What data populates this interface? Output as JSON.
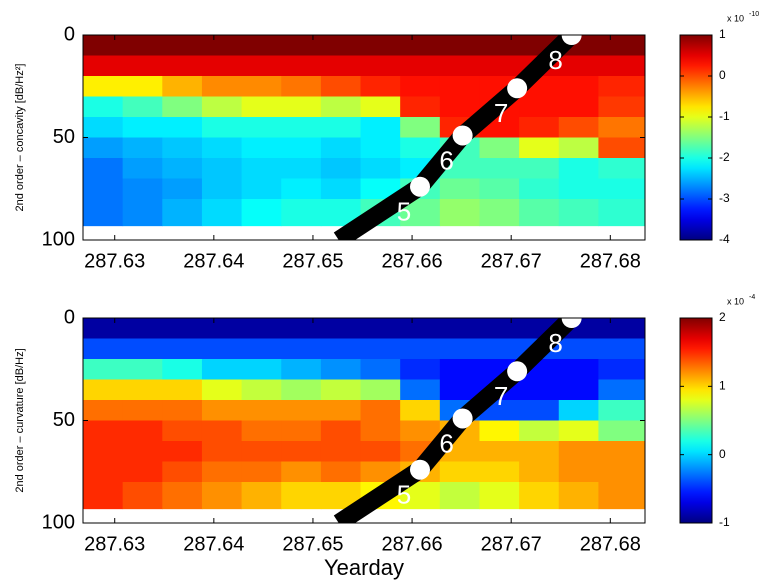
{
  "chart_data": [
    {
      "type": "heatmap",
      "colormap": "jet",
      "ylabel": "2nd order – concavity [dB/Hz²]",
      "xlim": [
        287.6268,
        287.6835
      ],
      "xticks": [
        287.63,
        287.64,
        287.65,
        287.66,
        287.67,
        287.68
      ],
      "ylim": [
        0,
        100
      ],
      "yticks": [
        0,
        50,
        100
      ],
      "y_reversed": true,
      "x_edges": [
        287.6268,
        287.6308,
        287.6348,
        287.6388,
        287.6428,
        287.6468,
        287.6508,
        287.6548,
        287.6588,
        287.6628,
        287.6668,
        287.6708,
        287.6748,
        287.6788,
        287.6835
      ],
      "y_edges": [
        0,
        10,
        20,
        30,
        40,
        50,
        60,
        70,
        80,
        93
      ],
      "values": [
        [
          1,
          1,
          1,
          1,
          1,
          1,
          1,
          1,
          1,
          1,
          1,
          1,
          1,
          1
        ],
        [
          0.5,
          0.5,
          0.5,
          0.5,
          0.5,
          0.5,
          0.5,
          0.5,
          0.5,
          0.5,
          0.5,
          0.5,
          0.5,
          0.5
        ],
        [
          -0.8,
          -0.8,
          -0.5,
          -0.3,
          -0.3,
          -0.2,
          0,
          0.2,
          0.3,
          0.3,
          0.3,
          0.3,
          0.3,
          0.2
        ],
        [
          -2,
          -1.8,
          -1.5,
          -1.2,
          -1,
          -1,
          -1.2,
          -1,
          0.2,
          0.3,
          0.3,
          0.3,
          0.3,
          0.1
        ],
        [
          -2.3,
          -2.2,
          -2.2,
          -2,
          -2,
          -2,
          -2,
          -2.2,
          -1.5,
          0.2,
          0.3,
          0.2,
          0,
          -0.2
        ],
        [
          -2.6,
          -2.5,
          -2.4,
          -2.3,
          -2.2,
          -2.2,
          -2.3,
          -2.2,
          -2,
          -1.8,
          -1.5,
          -1,
          -1.2,
          0
        ],
        [
          -2.8,
          -2.6,
          -2.5,
          -2.4,
          -2.3,
          -2.3,
          -2.4,
          -2.3,
          -2.2,
          -1.8,
          -1.8,
          -1.8,
          -2,
          -1.9
        ],
        [
          -2.8,
          -2.7,
          -2.6,
          -2.4,
          -2.3,
          -2.2,
          -2.3,
          -2.1,
          -1.8,
          -1.6,
          -1.7,
          -1.9,
          -2,
          -2
        ],
        [
          -2.8,
          -2.7,
          -2.5,
          -2.3,
          -2.1,
          -2,
          -2,
          -1.8,
          -1.6,
          -1.4,
          -1.5,
          -1.7,
          -1.8,
          -1.9
        ]
      ],
      "clim": [
        -4,
        1
      ],
      "cticks": [
        1,
        0,
        -1,
        -2,
        -3,
        -4
      ],
      "colorbar_multiplier": {
        "base": "x 10",
        "exponent": "-10"
      },
      "track": {
        "x": [
          287.6526,
          287.6608,
          287.6651,
          287.6706,
          287.6761
        ],
        "y": [
          100,
          74,
          49,
          26,
          0
        ]
      },
      "markers": {
        "x": [
          287.6608,
          287.6651,
          287.6706,
          287.6761
        ],
        "y": [
          74,
          49,
          26,
          0
        ],
        "labels": [
          "5",
          "6",
          "7",
          "8"
        ]
      }
    },
    {
      "type": "heatmap",
      "colormap": "jet",
      "ylabel": "2nd order – curvature [dB/Hz]",
      "xlabel": "Yearday",
      "xlim": [
        287.6268,
        287.6835
      ],
      "xticks": [
        287.63,
        287.64,
        287.65,
        287.66,
        287.67,
        287.68
      ],
      "ylim": [
        0,
        100
      ],
      "yticks": [
        0,
        50,
        100
      ],
      "y_reversed": true,
      "x_edges": [
        287.6268,
        287.6308,
        287.6348,
        287.6388,
        287.6428,
        287.6468,
        287.6508,
        287.6548,
        287.6588,
        287.6628,
        287.6668,
        287.6708,
        287.6748,
        287.6788,
        287.6835
      ],
      "y_edges": [
        0,
        10,
        20,
        30,
        40,
        50,
        60,
        70,
        80,
        93
      ],
      "values": [
        [
          -0.9,
          -0.9,
          -0.9,
          -0.9,
          -0.9,
          -0.9,
          -0.9,
          -0.9,
          -0.9,
          -0.9,
          -0.9,
          -0.9,
          -0.9,
          -0.9
        ],
        [
          -0.4,
          -0.4,
          -0.4,
          -0.4,
          -0.4,
          -0.4,
          -0.4,
          -0.4,
          -0.4,
          -0.4,
          -0.4,
          -0.4,
          -0.4,
          -0.4
        ],
        [
          0.3,
          0.3,
          0.2,
          0,
          0,
          -0.1,
          -0.2,
          -0.3,
          -0.5,
          -0.6,
          -0.6,
          -0.6,
          -0.6,
          -0.5
        ],
        [
          1,
          1,
          1,
          0.8,
          0.7,
          0.6,
          0.7,
          0.6,
          -0.3,
          -0.6,
          -0.6,
          -0.6,
          -0.6,
          -0.3
        ],
        [
          1.3,
          1.3,
          1.3,
          1.2,
          1.2,
          1.2,
          1.2,
          1.3,
          1,
          -0.3,
          -0.4,
          -0.4,
          0,
          0.3
        ],
        [
          1.5,
          1.5,
          1.4,
          1.4,
          1.3,
          1.3,
          1.4,
          1.3,
          1.2,
          1.1,
          0.9,
          0.7,
          0.8,
          0.5
        ],
        [
          1.5,
          1.5,
          1.5,
          1.4,
          1.4,
          1.4,
          1.4,
          1.4,
          1.3,
          1.1,
          1.1,
          1.1,
          1.2,
          1.2
        ],
        [
          1.5,
          1.5,
          1.4,
          1.3,
          1.3,
          1.2,
          1.3,
          1.2,
          1.1,
          1,
          1,
          1.1,
          1.2,
          1.2
        ],
        [
          1.5,
          1.4,
          1.3,
          1.2,
          1.1,
          1,
          1,
          0.9,
          0.8,
          0.7,
          0.8,
          1,
          1.1,
          1.2
        ]
      ],
      "clim": [
        -1,
        2
      ],
      "cticks": [
        2,
        1,
        0,
        -1
      ],
      "colorbar_multiplier": {
        "base": "x 10",
        "exponent": "-4"
      },
      "track": {
        "x": [
          287.6526,
          287.6608,
          287.6651,
          287.6706,
          287.6761
        ],
        "y": [
          100,
          74,
          49,
          26,
          0
        ]
      },
      "markers": {
        "x": [
          287.6608,
          287.6651,
          287.6706,
          287.6761
        ],
        "y": [
          74,
          49,
          26,
          0
        ],
        "labels": [
          "5",
          "6",
          "7",
          "8"
        ]
      }
    }
  ]
}
